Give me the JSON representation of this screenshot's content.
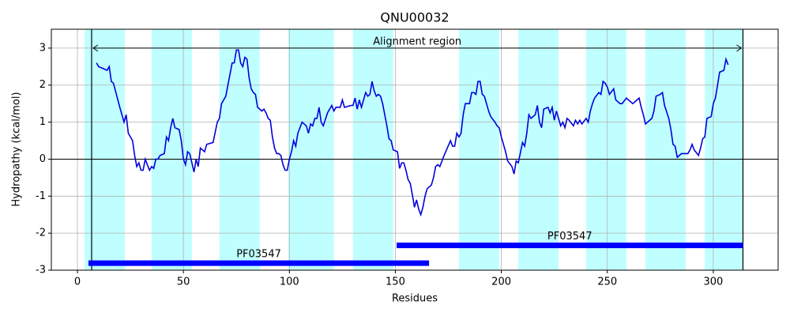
{
  "chart_data": {
    "type": "line",
    "title": "QNU00032",
    "xlabel": "Residues",
    "ylabel": "Hydropathy (kcal/mol)",
    "color": "#0000dd",
    "region_color": "#c0ffff",
    "domain_color": "#0000ff",
    "grid": true,
    "xlim": [
      -12.3,
      330.6
    ],
    "ylim": [
      -3,
      3.51
    ],
    "xticks": [
      0,
      50,
      100,
      150,
      200,
      250,
      300
    ],
    "yticks": [
      -3,
      -2,
      -1,
      0,
      1,
      2,
      3
    ],
    "hlines": [
      0
    ],
    "regions": [
      [
        3.4,
        22.4
      ],
      [
        35,
        54
      ],
      [
        67,
        86
      ],
      [
        99.5,
        121
      ],
      [
        130,
        149
      ],
      [
        180,
        199
      ],
      [
        208,
        227
      ],
      [
        240,
        259
      ],
      [
        268,
        287
      ],
      [
        296,
        314
      ]
    ],
    "alignment": {
      "label": "Alignment region",
      "start": 6.7,
      "end": 314,
      "y": 3
    },
    "domains": [
      {
        "label": "PF03547",
        "start": 5.2,
        "end": 165.9,
        "y": -2.81
      },
      {
        "label": "PF03547",
        "start": 150.6,
        "end": 314,
        "y": -2.33
      }
    ],
    "x": [
      9,
      10,
      12,
      14,
      15,
      16,
      17,
      20,
      22,
      23,
      24,
      26,
      27,
      28,
      29,
      30,
      31,
      32,
      34,
      35,
      36,
      37,
      38,
      39,
      41,
      42,
      43,
      44,
      45,
      46,
      48,
      49,
      50,
      51,
      52,
      53,
      55,
      56,
      57,
      58,
      60,
      61,
      64,
      66,
      67,
      68,
      70,
      72,
      73,
      74,
      75,
      76,
      77,
      78,
      79,
      80,
      81,
      82,
      83,
      84,
      85,
      87,
      88,
      89,
      90,
      91,
      92,
      93,
      94,
      95,
      96,
      97,
      98,
      99,
      100,
      101,
      102,
      103,
      104,
      106,
      108,
      109,
      110,
      111,
      112,
      113,
      114,
      115,
      116,
      118,
      120,
      121,
      122,
      124,
      125,
      126,
      129,
      130,
      131,
      132,
      133,
      134,
      136,
      137,
      138,
      139,
      140,
      141,
      142,
      143,
      144,
      145,
      146,
      147,
      148,
      149,
      151,
      152,
      153,
      154,
      155,
      156,
      157,
      158,
      159,
      160,
      161,
      162,
      163,
      164,
      165,
      167,
      168,
      169,
      170,
      171,
      173,
      176,
      177,
      178,
      179,
      180,
      181,
      182,
      183,
      185,
      186,
      187,
      188,
      189,
      190,
      191,
      192,
      194,
      195,
      197,
      198,
      199,
      200,
      202,
      203,
      205,
      206,
      207,
      208,
      210,
      211,
      212,
      213,
      214,
      216,
      217,
      218,
      219,
      220,
      222,
      223,
      224,
      225,
      226,
      228,
      229,
      230,
      231,
      232,
      234,
      235,
      236,
      237,
      238,
      240,
      241,
      242,
      243,
      244,
      246,
      247,
      248,
      249,
      250,
      251,
      253,
      254,
      255,
      256,
      257,
      259,
      260,
      262,
      264,
      265,
      266,
      267,
      268,
      270,
      271,
      272,
      273,
      275,
      276,
      277,
      279,
      280,
      281,
      282,
      283,
      284,
      285,
      288,
      289,
      290,
      291,
      293,
      294,
      295,
      296,
      297,
      299,
      300,
      301,
      302,
      303,
      305,
      306,
      307
    ],
    "values": [
      2.6,
      2.5,
      2.45,
      2.4,
      2.5,
      2.1,
      2.05,
      1.4,
      1.0,
      1.2,
      0.7,
      0.5,
      0.1,
      -0.2,
      -0.1,
      -0.3,
      -0.3,
      0.0,
      -0.3,
      -0.2,
      -0.25,
      0.0,
      0.0,
      0.1,
      0.15,
      0.6,
      0.5,
      0.85,
      1.1,
      0.85,
      0.8,
      0.5,
      0.0,
      -0.15,
      0.2,
      0.15,
      -0.35,
      0.0,
      -0.2,
      0.3,
      0.2,
      0.4,
      0.45,
      1.0,
      1.1,
      1.5,
      1.7,
      2.3,
      2.6,
      2.6,
      2.95,
      2.95,
      2.6,
      2.5,
      2.75,
      2.7,
      2.2,
      1.9,
      1.8,
      1.75,
      1.4,
      1.3,
      1.35,
      1.25,
      1.1,
      1.05,
      0.6,
      0.3,
      0.15,
      0.15,
      0.1,
      -0.15,
      -0.3,
      -0.3,
      0.0,
      0.2,
      0.5,
      0.35,
      0.7,
      1.0,
      0.9,
      0.7,
      0.95,
      0.9,
      1.1,
      1.1,
      1.4,
      1.0,
      0.9,
      1.25,
      1.45,
      1.3,
      1.4,
      1.4,
      1.6,
      1.4,
      1.45,
      1.45,
      1.65,
      1.35,
      1.6,
      1.4,
      1.8,
      1.7,
      1.75,
      2.1,
      1.85,
      1.7,
      1.75,
      1.7,
      1.5,
      1.2,
      0.9,
      0.55,
      0.5,
      0.25,
      0.2,
      -0.25,
      -0.1,
      -0.1,
      -0.3,
      -0.55,
      -0.65,
      -0.95,
      -1.3,
      -1.1,
      -1.35,
      -1.5,
      -1.3,
      -1.0,
      -0.8,
      -0.7,
      -0.5,
      -0.2,
      -0.15,
      -0.2,
      0.1,
      0.5,
      0.35,
      0.35,
      0.7,
      0.6,
      0.7,
      1.2,
      1.5,
      1.5,
      1.8,
      1.8,
      1.75,
      2.1,
      2.1,
      1.75,
      1.7,
      1.3,
      1.15,
      1.0,
      0.9,
      0.85,
      0.6,
      0.2,
      -0.05,
      -0.2,
      -0.4,
      -0.05,
      -0.1,
      0.45,
      0.35,
      0.7,
      1.2,
      1.1,
      1.2,
      1.45,
      1.0,
      0.85,
      1.35,
      1.4,
      1.25,
      1.4,
      1.05,
      1.3,
      0.9,
      1.0,
      0.85,
      1.1,
      1.05,
      0.9,
      1.05,
      0.95,
      1.05,
      0.95,
      1.1,
      1.0,
      1.3,
      1.5,
      1.65,
      1.8,
      1.75,
      2.1,
      2.05,
      1.95,
      1.75,
      1.9,
      1.6,
      1.55,
      1.5,
      1.5,
      1.65,
      1.6,
      1.5,
      1.6,
      1.65,
      1.4,
      1.2,
      0.95,
      1.05,
      1.1,
      1.3,
      1.7,
      1.75,
      1.8,
      1.45,
      1.1,
      0.8,
      0.4,
      0.35,
      0.05,
      0.1,
      0.15,
      0.15,
      0.25,
      0.4,
      0.25,
      0.1,
      0.3,
      0.55,
      0.6,
      1.1,
      1.15,
      1.5,
      1.65,
      2.0,
      2.35,
      2.4,
      2.7,
      2.55
    ]
  }
}
